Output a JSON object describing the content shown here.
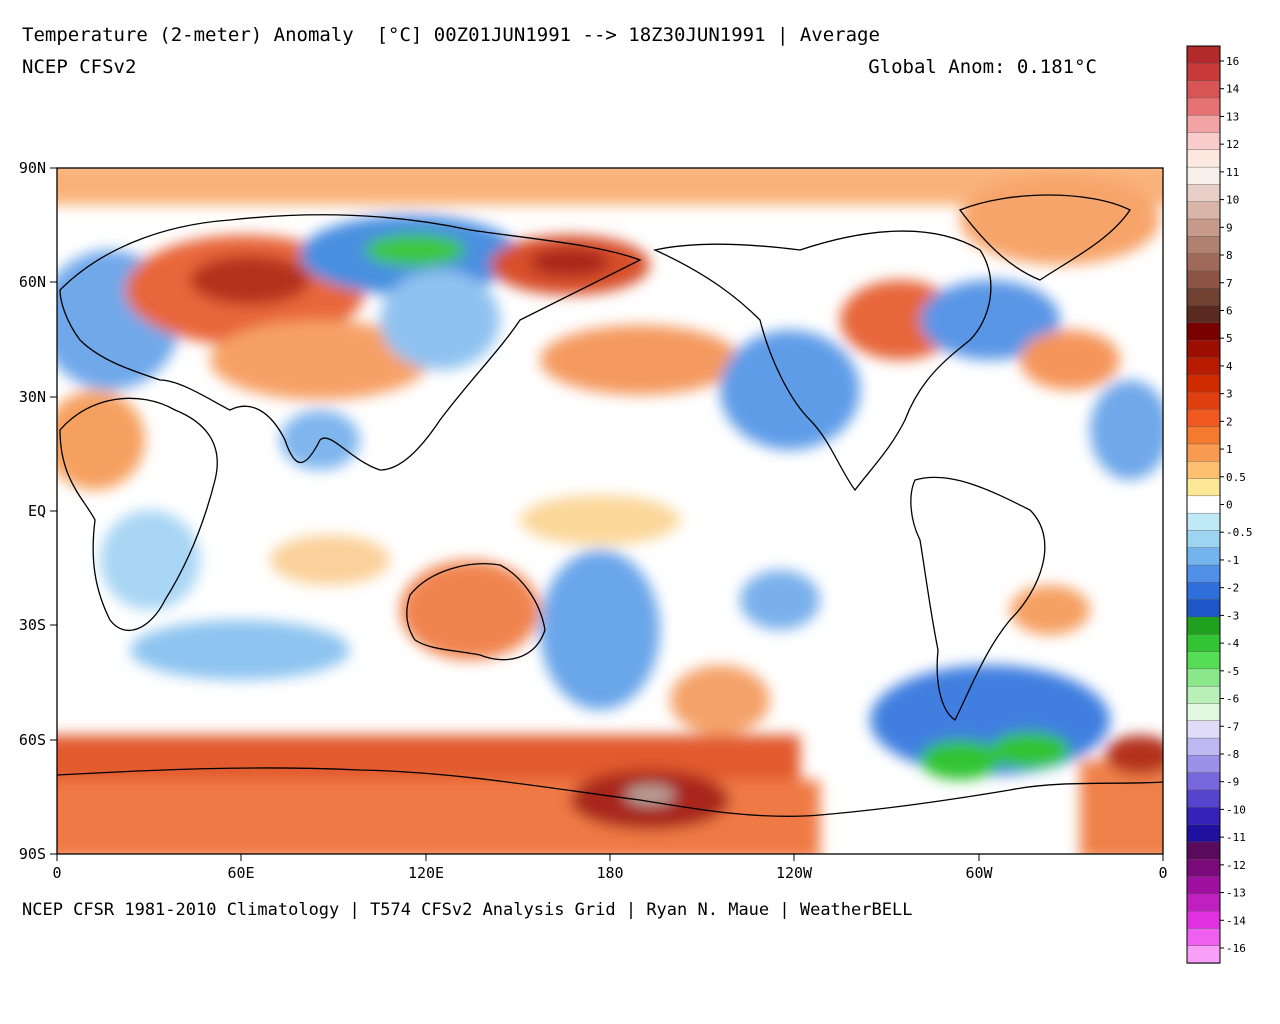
{
  "header": {
    "title": "Temperature (2-meter) Anomaly  [°C] 00Z01JUN1991 --> 18Z30JUN1991 | Average",
    "model": "NCEP CFSv2",
    "global_anom": "Global Anom: 0.181°C"
  },
  "footer": {
    "credits": "NCEP CFSR 1981-2010 Climatology | T574 CFSv2 Analysis Grid | Ryan N. Maue | WeatherBELL"
  },
  "axes": {
    "lat_ticks": [
      "90N",
      "60N",
      "30N",
      "EQ",
      "30S",
      "60S",
      "90S"
    ],
    "lon_ticks": [
      "0",
      "60E",
      "120E",
      "180",
      "120W",
      "60W",
      "0"
    ]
  },
  "colorbar": {
    "labels": [
      "16",
      "14",
      "13",
      "12",
      "11",
      "10",
      "9",
      "8",
      "7",
      "6",
      "5",
      "4",
      "3",
      "2",
      "1",
      "0.5",
      "0",
      "-0.5",
      "-1",
      "-2",
      "-3",
      "-4",
      "-5",
      "-6",
      "-7",
      "-8",
      "-9",
      "-10",
      "-11",
      "-12",
      "-13",
      "-14",
      "-16"
    ],
    "colors": [
      "#b22a2a",
      "#c83a3a",
      "#d85555",
      "#e57373",
      "#f2a3a3",
      "#f9cccc",
      "#fde8e0",
      "#f7f0ea",
      "#e8d0c8",
      "#d9b4a8",
      "#c89a8c",
      "#b08070",
      "#a06a5a",
      "#8c5444",
      "#704030",
      "#5a2a20",
      "#7a0000",
      "#9c0e00",
      "#b81c00",
      "#d02c00",
      "#e04010",
      "#f05a20",
      "#f47a30",
      "#f89a50",
      "#fcc070",
      "#fde898",
      "#ffffff",
      "#bfeaf5",
      "#9dd4f2",
      "#74b4ee",
      "#5090e8",
      "#2f6fdc",
      "#1e56c8",
      "#1fa01f",
      "#33c433",
      "#55dd55",
      "#8ae88a",
      "#b8f0b8",
      "#e0f8e0",
      "#e0dcf8",
      "#c0b8f0",
      "#9c90e8",
      "#7866dc",
      "#5544cc",
      "#3522b8",
      "#2010a0",
      "#5a0a5a",
      "#7a0a7a",
      "#a010a0",
      "#c020c0",
      "#e030e0",
      "#f060f0",
      "#f8a0f8"
    ]
  }
}
